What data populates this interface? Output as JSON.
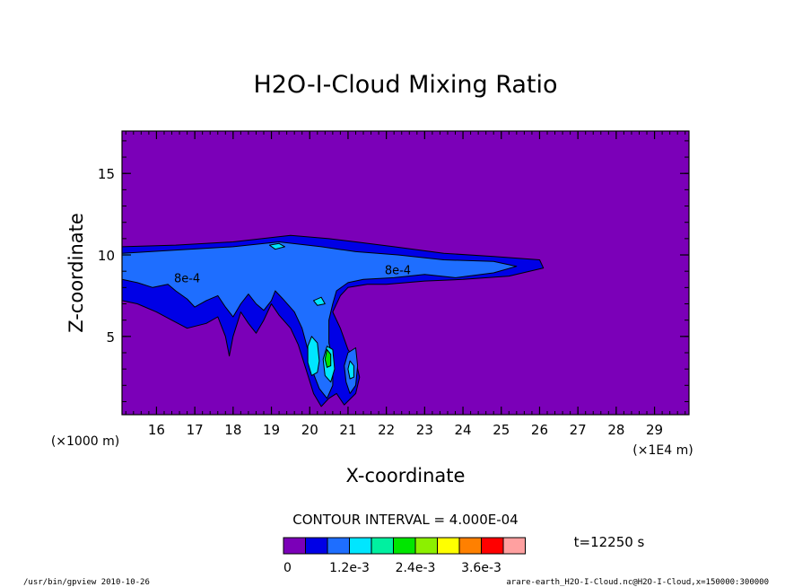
{
  "chart_data": {
    "type": "contour",
    "title": "H2O-I-Cloud Mixing Ratio",
    "xlabel": "X-coordinate",
    "ylabel": "Z-coordinate",
    "x_unit_left": "(×1000 m)",
    "x_unit_right": "(×1E4 m)",
    "xlim": [
      15.1,
      29.9
    ],
    "ylim": [
      0.2,
      17.6
    ],
    "x_ticks_major": [
      16,
      17,
      18,
      19,
      20,
      21,
      22,
      23,
      24,
      25,
      26,
      27,
      28,
      29
    ],
    "x_ticks_minor_step": 0.2,
    "y_ticks_major": [
      5,
      10,
      15
    ],
    "y_ticks_minor_step": 1,
    "contour_interval_label": "CONTOUR INTERVAL = 4.000E-04",
    "time_label": "t=12250 s",
    "contour_labels": [
      {
        "text": "8e-4",
        "x": 16.8,
        "y": 8.6
      },
      {
        "text": "8e-4",
        "x": 22.3,
        "y": 9.1
      }
    ],
    "levels": [
      0,
      0.0004,
      0.0008,
      0.0012,
      0.0016,
      0.002,
      0.0024,
      0.0028,
      0.0032,
      0.0036,
      0.004,
      0.0044
    ],
    "colorbar": {
      "colors": [
        "#7b00b8",
        "#0000e6",
        "#1e6eff",
        "#00e6ff",
        "#00f0a0",
        "#00e600",
        "#8cf000",
        "#ffff00",
        "#ff8000",
        "#ff0000",
        "#ffa0a0"
      ],
      "labels": [
        {
          "text": "0",
          "index": 0
        },
        {
          "text": "1.2e-3",
          "index": 3
        },
        {
          "text": "2.4e-3",
          "index": 6
        },
        {
          "text": "3.6e-3",
          "index": 9
        }
      ]
    },
    "regions": [
      {
        "level_index": 1,
        "points": [
          [
            15.1,
            10.5
          ],
          [
            16.5,
            10.6
          ],
          [
            18,
            10.8
          ],
          [
            19.5,
            11.2
          ],
          [
            20.5,
            11
          ],
          [
            21.2,
            10.8
          ],
          [
            22.2,
            10.5
          ],
          [
            23.5,
            10.1
          ],
          [
            24.8,
            9.9
          ],
          [
            26,
            9.7
          ],
          [
            26.1,
            9.2
          ],
          [
            25.2,
            8.7
          ],
          [
            24,
            8.5
          ],
          [
            23,
            8.4
          ],
          [
            22,
            8.2
          ],
          [
            21.5,
            8.2
          ],
          [
            21,
            8
          ],
          [
            20.8,
            7.5
          ],
          [
            20.6,
            6.5
          ],
          [
            20.8,
            5.5
          ],
          [
            21,
            4.2
          ],
          [
            21.2,
            3.5
          ],
          [
            21.3,
            2.5
          ],
          [
            21.2,
            1.5
          ],
          [
            20.9,
            0.8
          ],
          [
            20.7,
            1.5
          ],
          [
            20.5,
            1.2
          ],
          [
            20.3,
            0.7
          ],
          [
            20.1,
            1.5
          ],
          [
            19.9,
            3
          ],
          [
            19.7,
            4.5
          ],
          [
            19.5,
            5.5
          ],
          [
            19.2,
            6.3
          ],
          [
            19,
            7
          ],
          [
            18.8,
            6
          ],
          [
            18.6,
            5.2
          ],
          [
            18.4,
            5.8
          ],
          [
            18.2,
            6.5
          ],
          [
            18,
            5
          ],
          [
            17.9,
            3.8
          ],
          [
            17.8,
            5
          ],
          [
            17.6,
            6.2
          ],
          [
            17.3,
            5.8
          ],
          [
            16.8,
            5.5
          ],
          [
            16.4,
            6
          ],
          [
            16,
            6.5
          ],
          [
            15.5,
            7
          ],
          [
            15.1,
            7.2
          ]
        ]
      },
      {
        "level_index": 2,
        "points": [
          [
            15.1,
            10.1
          ],
          [
            16.5,
            10.3
          ],
          [
            18,
            10.5
          ],
          [
            19.2,
            10.8
          ],
          [
            20.3,
            10.5
          ],
          [
            21.2,
            10.2
          ],
          [
            22.3,
            10
          ],
          [
            23.5,
            9.7
          ],
          [
            24.8,
            9.6
          ],
          [
            25.4,
            9.3
          ],
          [
            24.8,
            8.9
          ],
          [
            23.8,
            8.6
          ],
          [
            23,
            8.8
          ],
          [
            22.2,
            8.6
          ],
          [
            21.4,
            8.5
          ],
          [
            21,
            8.3
          ],
          [
            20.7,
            7.8
          ],
          [
            20.6,
            7
          ],
          [
            20.5,
            6
          ],
          [
            20.5,
            4.6
          ],
          [
            20.6,
            3.6
          ],
          [
            20.6,
            2
          ],
          [
            20.45,
            1.2
          ],
          [
            20.25,
            1.8
          ],
          [
            20.05,
            3
          ],
          [
            19.95,
            4.2
          ],
          [
            19.8,
            5.5
          ],
          [
            19.6,
            6.5
          ],
          [
            19.3,
            7.3
          ],
          [
            19.1,
            7.8
          ],
          [
            19,
            7.2
          ],
          [
            18.8,
            6.6
          ],
          [
            18.6,
            7
          ],
          [
            18.4,
            7.6
          ],
          [
            18.2,
            7
          ],
          [
            18,
            6.2
          ],
          [
            17.8,
            6.8
          ],
          [
            17.6,
            7.5
          ],
          [
            17.3,
            7.2
          ],
          [
            17,
            6.8
          ],
          [
            16.8,
            7.3
          ],
          [
            16.5,
            7.8
          ],
          [
            16.3,
            8.2
          ],
          [
            15.9,
            8
          ],
          [
            15.5,
            8.3
          ],
          [
            15.1,
            8.5
          ]
        ]
      },
      {
        "level_index": 2,
        "points": [
          [
            21,
            4
          ],
          [
            21.2,
            4.3
          ],
          [
            21.25,
            3.2
          ],
          [
            21.2,
            2
          ],
          [
            21.05,
            1.5
          ],
          [
            20.95,
            2.2
          ],
          [
            20.9,
            3.2
          ]
        ]
      },
      {
        "level_index": 3,
        "points": [
          [
            18.95,
            10.6
          ],
          [
            19.2,
            10.7
          ],
          [
            19.35,
            10.5
          ],
          [
            19.1,
            10.35
          ]
        ]
      },
      {
        "level_index": 3,
        "points": [
          [
            20.1,
            7.2
          ],
          [
            20.3,
            7.4
          ],
          [
            20.4,
            7
          ],
          [
            20.2,
            6.9
          ]
        ]
      },
      {
        "level_index": 3,
        "points": [
          [
            20.05,
            5
          ],
          [
            20.2,
            4.6
          ],
          [
            20.25,
            3.5
          ],
          [
            20.2,
            2.8
          ],
          [
            20.05,
            2.6
          ],
          [
            19.95,
            3.4
          ],
          [
            19.95,
            4.4
          ]
        ]
      },
      {
        "level_index": 3,
        "points": [
          [
            20.45,
            4.4
          ],
          [
            20.6,
            4.2
          ],
          [
            20.65,
            3
          ],
          [
            20.55,
            2.2
          ],
          [
            20.4,
            2.6
          ],
          [
            20.35,
            3.6
          ]
        ]
      },
      {
        "level_index": 3,
        "points": [
          [
            21.05,
            3.5
          ],
          [
            21.15,
            3.2
          ],
          [
            21.15,
            2.5
          ],
          [
            21.05,
            2.4
          ],
          [
            21,
            3
          ]
        ]
      },
      {
        "level_index": 5,
        "points": [
          [
            20.45,
            4.2
          ],
          [
            20.55,
            3.9
          ],
          [
            20.55,
            3.2
          ],
          [
            20.45,
            3.1
          ],
          [
            20.4,
            3.6
          ]
        ]
      }
    ],
    "footer_left": "/usr/bin/gpview  2010-10-26",
    "footer_right": "arare-earth_H2O-I-Cloud.nc@H2O-I-Cloud,x=150000:300000"
  }
}
